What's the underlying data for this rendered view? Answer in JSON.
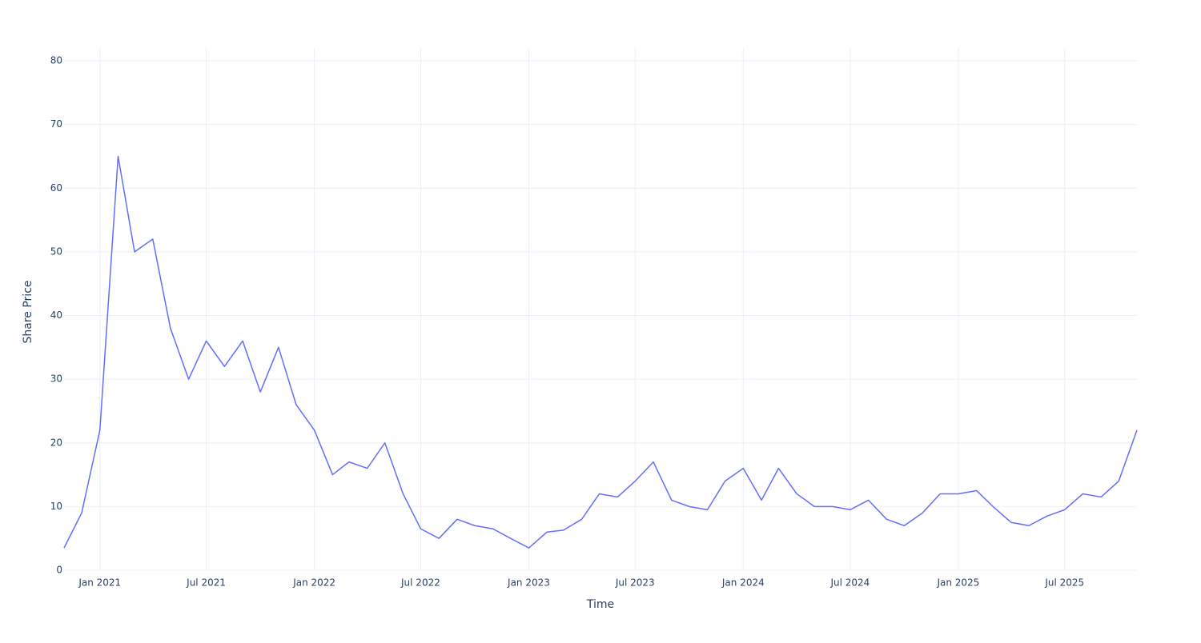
{
  "chart_data": {
    "type": "line",
    "x_label": "Time",
    "y_label": "Share Price",
    "x": [
      "2020-11",
      "2020-12",
      "2021-01",
      "2021-02",
      "2021-03",
      "2021-04",
      "2021-05",
      "2021-06",
      "2021-07",
      "2021-08",
      "2021-09",
      "2021-10",
      "2021-11",
      "2021-12",
      "2022-01",
      "2022-02",
      "2022-03",
      "2022-04",
      "2022-05",
      "2022-06",
      "2022-07",
      "2022-08",
      "2022-09",
      "2022-10",
      "2022-11",
      "2022-12",
      "2023-01",
      "2023-02",
      "2023-03",
      "2023-04",
      "2023-05",
      "2023-06",
      "2023-07",
      "2023-08",
      "2023-09",
      "2023-10",
      "2023-11",
      "2023-12",
      "2024-01",
      "2024-02",
      "2024-03",
      "2024-04",
      "2024-05",
      "2024-06",
      "2024-07",
      "2024-08",
      "2024-09",
      "2024-10",
      "2024-11",
      "2024-12",
      "2025-01",
      "2025-02",
      "2025-03",
      "2025-04",
      "2025-05",
      "2025-06",
      "2025-07",
      "2025-08",
      "2025-09",
      "2025-10",
      "2025-11"
    ],
    "series": [
      {
        "name": "Share Price",
        "color": "#636efa",
        "values": [
          3.5,
          9,
          22,
          65,
          50,
          52,
          38,
          30,
          36,
          32,
          36,
          28,
          35,
          26,
          22,
          15,
          17,
          16,
          20,
          12,
          6.5,
          5,
          8,
          7,
          6.5,
          5,
          3.5,
          6,
          6.3,
          8,
          12,
          11.5,
          14,
          17,
          11,
          10,
          9.5,
          14,
          16,
          11,
          16,
          12,
          10,
          10,
          9.5,
          11,
          8,
          7,
          9,
          12,
          12,
          12.5,
          10,
          7.5,
          7,
          8.5,
          9.5,
          12,
          11.5,
          14,
          22
        ]
      }
    ],
    "xlim": [
      "2020-11",
      "2025-11"
    ],
    "xticks": [
      {
        "value": "2021-01",
        "label": "Jan 2021"
      },
      {
        "value": "2021-07",
        "label": "Jul 2021"
      },
      {
        "value": "2022-01",
        "label": "Jan 2022"
      },
      {
        "value": "2022-07",
        "label": "Jul 2022"
      },
      {
        "value": "2023-01",
        "label": "Jan 2023"
      },
      {
        "value": "2023-07",
        "label": "Jul 2023"
      },
      {
        "value": "2024-01",
        "label": "Jan 2024"
      },
      {
        "value": "2024-07",
        "label": "Jul 2024"
      },
      {
        "value": "2025-01",
        "label": "Jan 2025"
      },
      {
        "value": "2025-07",
        "label": "Jul 2025"
      }
    ],
    "ylim": [
      0,
      80
    ],
    "yticks": [
      0,
      10,
      20,
      30,
      40,
      50,
      60,
      70,
      80
    ],
    "grid": true
  }
}
